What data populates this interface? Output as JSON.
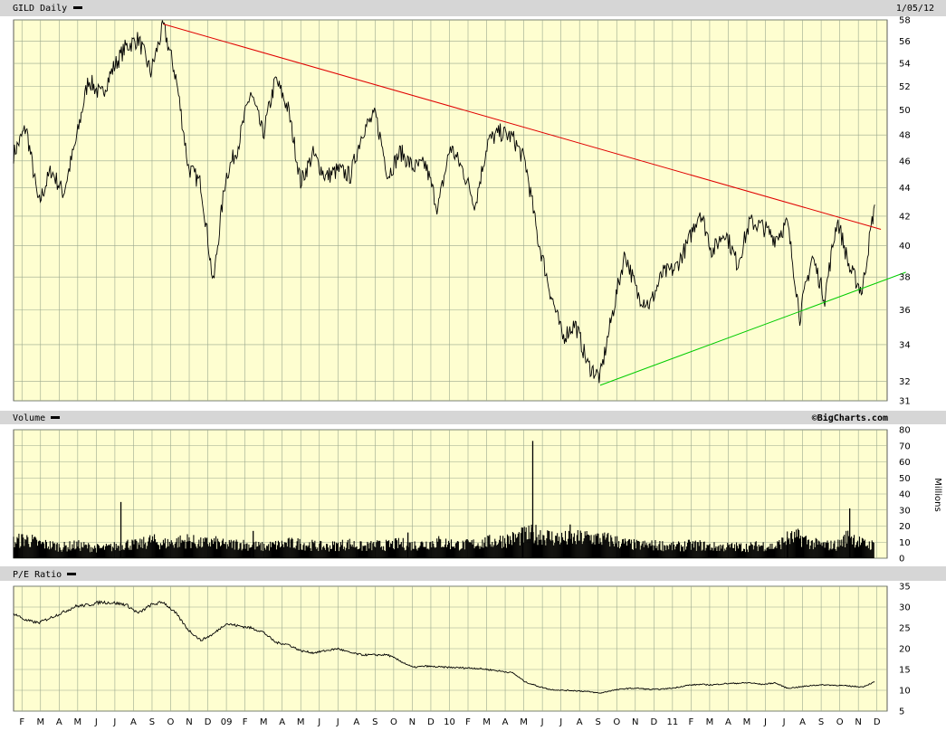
{
  "header": {
    "symbol_label": "GILD Daily",
    "date": "1/05/12",
    "volume_label": "Volume",
    "pe_label": "P/E Ratio",
    "watermark": "©BigCharts.com",
    "volume_unit": "Millions"
  },
  "colors": {
    "background": "#fefed0",
    "grid": "#9aa88e",
    "band": "#d6d6d6",
    "price": "#000000",
    "resistance": "#e00000",
    "support": "#00cc00"
  },
  "chart_data": [
    {
      "type": "line",
      "panel": "price",
      "ylim": [
        31,
        58
      ],
      "scale": "log",
      "yticks": [
        31,
        32,
        34,
        36,
        38,
        40,
        42,
        44,
        46,
        48,
        50,
        52,
        54,
        56,
        58
      ],
      "series": [
        {
          "values": [
            [
              0,
              46.5
            ],
            [
              1,
              48.6
            ],
            [
              2,
              42.8
            ],
            [
              3,
              45.3
            ],
            [
              4,
              43.6
            ],
            [
              5,
              47.5
            ],
            [
              6,
              52.6
            ],
            [
              7,
              51.2
            ],
            [
              8,
              53.6
            ],
            [
              9,
              55.5
            ],
            [
              10,
              56.2
            ],
            [
              11,
              53.2
            ],
            [
              12,
              57.4
            ],
            [
              13,
              52.8
            ],
            [
              14,
              45.5
            ],
            [
              15,
              44.3
            ],
            [
              16,
              37.5
            ],
            [
              17,
              44.8
            ],
            [
              18,
              47.2
            ],
            [
              19,
              51.5
            ],
            [
              20,
              48.0
            ],
            [
              21,
              52.6
            ],
            [
              22,
              50.1
            ],
            [
              23,
              44.4
            ],
            [
              24,
              46.5
            ],
            [
              25,
              44.8
            ],
            [
              26,
              45.3
            ],
            [
              27,
              44.9
            ],
            [
              28,
              48.4
            ],
            [
              29,
              49.6
            ],
            [
              30,
              44.9
            ],
            [
              31,
              46.7
            ],
            [
              32,
              45.5
            ],
            [
              33,
              45.7
            ],
            [
              34,
              42.5
            ],
            [
              35,
              47.1
            ],
            [
              36,
              45.3
            ],
            [
              37,
              42.8
            ],
            [
              38,
              47.5
            ],
            [
              39,
              48.2
            ],
            [
              40,
              47.8
            ],
            [
              41,
              45.9
            ],
            [
              42,
              40.5
            ],
            [
              43,
              37.1
            ],
            [
              44,
              34.4
            ],
            [
              45,
              35.2
            ],
            [
              46,
              32.9
            ],
            [
              47,
              32.2
            ],
            [
              48,
              35.8
            ],
            [
              49,
              39.5
            ],
            [
              50,
              36.9
            ],
            [
              51,
              36.3
            ],
            [
              52,
              38.2
            ],
            [
              53,
              38.5
            ],
            [
              54,
              40.1
            ],
            [
              55,
              42.4
            ],
            [
              56,
              39.6
            ],
            [
              57,
              41.0
            ],
            [
              58,
              38.8
            ],
            [
              59,
              41.6
            ],
            [
              60,
              41.3
            ],
            [
              61,
              40.5
            ],
            [
              62,
              41.5
            ],
            [
              63,
              35.6
            ],
            [
              64,
              39.3
            ],
            [
              65,
              36.7
            ],
            [
              66,
              41.8
            ],
            [
              67,
              38.5
            ],
            [
              68,
              37.1
            ],
            [
              69,
              42.8
            ]
          ]
        },
        {
          "name": "",
          "values": [
            [
              12,
              57.6
            ],
            [
              69.5,
              41.1
            ]
          ]
        },
        {
          "name": "",
          "values": [
            [
              47,
              31.8
            ],
            [
              71.5,
              38.3
            ]
          ]
        }
      ]
    },
    {
      "type": "bar",
      "panel": "volume",
      "ylabel": "Millions",
      "ylim": [
        0,
        80
      ],
      "yticks": [
        0,
        10,
        20,
        30,
        40,
        50,
        60,
        70,
        80
      ],
      "values": [
        [
          0,
          10
        ],
        [
          1,
          12
        ],
        [
          2,
          9
        ],
        [
          3,
          8
        ],
        [
          4,
          7
        ],
        [
          5,
          8
        ],
        [
          6,
          7
        ],
        [
          7,
          6
        ],
        [
          8,
          7
        ],
        [
          9,
          9
        ],
        [
          10,
          8
        ],
        [
          11,
          11
        ],
        [
          12,
          9
        ],
        [
          13,
          10
        ],
        [
          14,
          11
        ],
        [
          15,
          9
        ],
        [
          16,
          10
        ],
        [
          17,
          8
        ],
        [
          18,
          9
        ],
        [
          19,
          8
        ],
        [
          20,
          7
        ],
        [
          21,
          8
        ],
        [
          22,
          9
        ],
        [
          23,
          9
        ],
        [
          24,
          8
        ],
        [
          25,
          7
        ],
        [
          26,
          8
        ],
        [
          27,
          9
        ],
        [
          28,
          7
        ],
        [
          29,
          8
        ],
        [
          30,
          8
        ],
        [
          31,
          9
        ],
        [
          32,
          8
        ],
        [
          33,
          9
        ],
        [
          34,
          10
        ],
        [
          35,
          9
        ],
        [
          36,
          8
        ],
        [
          37,
          9
        ],
        [
          38,
          10
        ],
        [
          39,
          11
        ],
        [
          40,
          12
        ],
        [
          41,
          14
        ],
        [
          42,
          15
        ],
        [
          43,
          13
        ],
        [
          44,
          12
        ],
        [
          45,
          12
        ],
        [
          46,
          13
        ],
        [
          47,
          12
        ],
        [
          48,
          11
        ],
        [
          49,
          9
        ],
        [
          50,
          8
        ],
        [
          51,
          8
        ],
        [
          52,
          8
        ],
        [
          53,
          7
        ],
        [
          54,
          8
        ],
        [
          55,
          8
        ],
        [
          56,
          7
        ],
        [
          57,
          7
        ],
        [
          58,
          7
        ],
        [
          59,
          7
        ],
        [
          60,
          8
        ],
        [
          61,
          7
        ],
        [
          62,
          12
        ],
        [
          63,
          13
        ],
        [
          64,
          9
        ],
        [
          65,
          8
        ],
        [
          66,
          8
        ],
        [
          67,
          14
        ],
        [
          68,
          9
        ],
        [
          69,
          8
        ]
      ],
      "spikes": [
        [
          8.6,
          35
        ],
        [
          19.2,
          17
        ],
        [
          31.6,
          16
        ],
        [
          40.8,
          19
        ],
        [
          41.6,
          73
        ],
        [
          44.6,
          21
        ],
        [
          62.0,
          13
        ],
        [
          67.0,
          31
        ]
      ]
    },
    {
      "type": "line",
      "panel": "pe",
      "ylim": [
        5,
        35
      ],
      "yticks": [
        5,
        10,
        15,
        20,
        25,
        30,
        35
      ],
      "series": [
        {
          "values": [
            [
              0,
              28.5
            ],
            [
              1,
              26.8
            ],
            [
              2,
              26.2
            ],
            [
              3,
              27.5
            ],
            [
              4,
              28.8
            ],
            [
              5,
              30.2
            ],
            [
              6,
              30.5
            ],
            [
              7,
              31.2
            ],
            [
              8,
              31.0
            ],
            [
              9,
              30.6
            ],
            [
              10,
              28.5
            ],
            [
              11,
              30.5
            ],
            [
              12,
              31.2
            ],
            [
              13,
              28.5
            ],
            [
              14,
              24.5
            ],
            [
              15,
              22.0
            ],
            [
              16,
              23.5
            ],
            [
              17,
              26.0
            ],
            [
              18,
              25.5
            ],
            [
              19,
              25.0
            ],
            [
              20,
              24.0
            ],
            [
              21,
              21.5
            ],
            [
              22,
              21.0
            ],
            [
              23,
              19.5
            ],
            [
              24,
              19.0
            ],
            [
              25,
              19.5
            ],
            [
              26,
              20.0
            ],
            [
              27,
              19.0
            ],
            [
              28,
              18.5
            ],
            [
              29,
              18.5
            ],
            [
              30,
              18.5
            ],
            [
              31,
              17.0
            ],
            [
              32,
              15.5
            ],
            [
              33,
              15.8
            ],
            [
              34,
              15.6
            ],
            [
              35,
              15.5
            ],
            [
              36,
              15.4
            ],
            [
              37,
              15.3
            ],
            [
              38,
              15.0
            ],
            [
              39,
              14.6
            ],
            [
              40,
              14.2
            ],
            [
              41,
              12.0
            ],
            [
              42,
              11.0
            ],
            [
              43,
              10.2
            ],
            [
              44,
              10.0
            ],
            [
              45,
              9.9
            ],
            [
              46,
              9.7
            ],
            [
              47,
              9.3
            ],
            [
              48,
              10.0
            ],
            [
              49,
              10.4
            ],
            [
              50,
              10.5
            ],
            [
              51,
              10.2
            ],
            [
              52,
              10.3
            ],
            [
              53,
              10.6
            ],
            [
              54,
              11.2
            ],
            [
              55,
              11.4
            ],
            [
              56,
              11.3
            ],
            [
              57,
              11.6
            ],
            [
              58,
              11.7
            ],
            [
              59,
              11.8
            ],
            [
              60,
              11.4
            ],
            [
              61,
              11.8
            ],
            [
              62,
              10.5
            ],
            [
              63,
              10.8
            ],
            [
              64,
              11.2
            ],
            [
              65,
              11.3
            ],
            [
              66,
              11.2
            ],
            [
              67,
              11.0
            ],
            [
              68,
              10.8
            ],
            [
              69,
              12.0
            ]
          ]
        }
      ]
    }
  ],
  "x_axis": {
    "month_count": 70,
    "labels": [
      "F",
      "M",
      "A",
      "M",
      "J",
      "J",
      "A",
      "S",
      "O",
      "N",
      "D",
      "09",
      "F",
      "M",
      "A",
      "M",
      "J",
      "J",
      "A",
      "S",
      "O",
      "N",
      "D",
      "10",
      "F",
      "M",
      "A",
      "M",
      "J",
      "J",
      "A",
      "S",
      "O",
      "N",
      "D",
      "11",
      "F",
      "M",
      "A",
      "M",
      "J",
      "J",
      "A",
      "S",
      "O",
      "N",
      "D"
    ]
  }
}
